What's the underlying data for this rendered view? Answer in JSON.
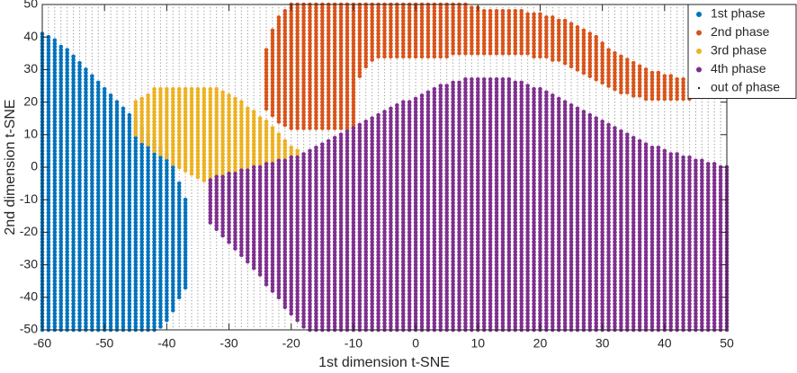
{
  "chart_data": {
    "type": "scatter",
    "xlabel": "1st dimension t-SNE",
    "ylabel": "2nd dimension t-SNE",
    "xlim": [
      -60,
      50
    ],
    "ylim": [
      -50,
      50
    ],
    "xticks": [
      -60,
      -50,
      -40,
      -30,
      -20,
      -10,
      0,
      10,
      20,
      30,
      40,
      50
    ],
    "yticks": [
      -50,
      -40,
      -30,
      -20,
      -10,
      0,
      10,
      20,
      30,
      40,
      50
    ],
    "legend": "upper right",
    "series": [
      {
        "name": "1st phase",
        "color": "#0072bd",
        "x": [
          -60,
          -59,
          -58,
          -57,
          -56,
          -55,
          -54,
          -53,
          -52,
          -51,
          -50,
          -49,
          -48,
          -47,
          -46,
          -45,
          -44,
          -43,
          -42,
          -41,
          -40,
          -39,
          -38,
          -37
        ],
        "ymax": [
          41,
          40,
          39,
          37,
          36,
          34,
          32,
          30,
          28,
          26,
          24,
          22,
          20,
          18,
          16,
          14,
          12,
          10,
          8,
          6,
          4,
          1,
          -5,
          -10
        ],
        "ymin": [
          -50,
          -50,
          -50,
          -50,
          -50,
          -50,
          -50,
          -50,
          -50,
          -50,
          -50,
          -50,
          -50,
          -50,
          -50,
          -50,
          -50,
          -50,
          -50,
          -49,
          -47,
          -44,
          -40,
          -37
        ]
      },
      {
        "name": "2nd phase",
        "color": "#d95319",
        "x": [
          -24,
          -23,
          -22,
          -21,
          -20,
          -19,
          -18,
          -17,
          -16,
          -15,
          -14,
          -13,
          -12,
          -11,
          -10,
          -9,
          -8,
          -7,
          -6,
          -5,
          -4,
          -3,
          -2,
          -1,
          0,
          1,
          2,
          3,
          4,
          5,
          6,
          7,
          8,
          9,
          10,
          11,
          12,
          13,
          14,
          15,
          16,
          17,
          18,
          19,
          20,
          21,
          22,
          23,
          24,
          25,
          26,
          27,
          28,
          29,
          30,
          31,
          32,
          33,
          34,
          35,
          36,
          37,
          38,
          39,
          40,
          41,
          42,
          43,
          44
        ],
        "ymax": [
          36,
          42,
          46,
          48,
          50,
          50,
          50,
          50,
          50,
          50,
          50,
          50,
          50,
          50,
          50,
          50,
          50,
          50,
          50,
          50,
          50,
          50,
          50,
          50,
          50,
          50,
          50,
          50,
          50,
          50,
          50,
          50,
          50,
          49,
          49,
          48,
          48,
          48,
          48,
          48,
          48,
          48,
          47,
          47,
          47,
          46,
          46,
          45,
          45,
          44,
          43,
          42,
          41,
          40,
          38,
          36,
          35,
          34,
          33,
          32,
          31,
          30,
          29,
          29,
          28,
          28,
          27,
          27,
          26
        ],
        "ymin": [
          18,
          16,
          14,
          13,
          12,
          12,
          12,
          12,
          12,
          12,
          12,
          12,
          12,
          12,
          12,
          28,
          31,
          33,
          34,
          34,
          34,
          34,
          34,
          34,
          34,
          34,
          34,
          34,
          34,
          34,
          35,
          35,
          35,
          35,
          35,
          35,
          35,
          35,
          35,
          35,
          35,
          35,
          35,
          34,
          34,
          34,
          33,
          33,
          32,
          31,
          30,
          29,
          28,
          27,
          26,
          25,
          24,
          23,
          23,
          22,
          22,
          21,
          21,
          21,
          21,
          21,
          21,
          21,
          21
        ]
      },
      {
        "name": "3rd phase",
        "color": "#edb120",
        "x": [
          -45,
          -44,
          -43,
          -42,
          -41,
          -40,
          -39,
          -38,
          -37,
          -36,
          -35,
          -34,
          -33,
          -32,
          -31,
          -30,
          -29,
          -28,
          -27,
          -26,
          -25,
          -24,
          -23,
          -22,
          -21,
          -20,
          -19
        ],
        "ymax": [
          20,
          21,
          22,
          24,
          24,
          24,
          24,
          24,
          24,
          24,
          24,
          24,
          24,
          24,
          23,
          22,
          21,
          20,
          18,
          17,
          15,
          14,
          12,
          10,
          8,
          6,
          5
        ],
        "ymin": [
          10,
          8,
          7,
          5,
          4,
          3,
          1,
          0,
          -1,
          -2,
          -3,
          -4,
          -5,
          -4,
          -3,
          -2,
          -1,
          -1,
          0,
          0,
          1,
          1,
          2,
          2,
          3,
          3,
          4
        ]
      },
      {
        "name": "4th phase",
        "color": "#7e2f8e",
        "x": [
          -33,
          -32,
          -31,
          -30,
          -29,
          -28,
          -27,
          -26,
          -25,
          -24,
          -23,
          -22,
          -21,
          -20,
          -19,
          -18,
          -17,
          -16,
          -15,
          -14,
          -13,
          -12,
          -11,
          -10,
          -9,
          -8,
          -7,
          -6,
          -5,
          -4,
          -3,
          -2,
          -1,
          0,
          1,
          2,
          3,
          4,
          5,
          6,
          7,
          8,
          9,
          10,
          11,
          12,
          13,
          14,
          15,
          16,
          17,
          18,
          19,
          20,
          21,
          22,
          23,
          24,
          25,
          26,
          27,
          28,
          29,
          30,
          31,
          32,
          33,
          34,
          35,
          36,
          37,
          38,
          39,
          40,
          41,
          42,
          43,
          44,
          45,
          46,
          47,
          48,
          49,
          50
        ],
        "ymax": [
          -4,
          -3,
          -3,
          -2,
          -2,
          -1,
          -1,
          0,
          0,
          1,
          1,
          2,
          2,
          3,
          3,
          4,
          5,
          6,
          7,
          8,
          9,
          10,
          11,
          12,
          13,
          14,
          15,
          16,
          17,
          18,
          19,
          20,
          20,
          21,
          22,
          23,
          24,
          25,
          25,
          26,
          26,
          27,
          27,
          27,
          27,
          27,
          27,
          27,
          27,
          26,
          26,
          25,
          24,
          24,
          23,
          22,
          21,
          20,
          19,
          18,
          17,
          16,
          15,
          14,
          13,
          12,
          11,
          10,
          9,
          8,
          7,
          6,
          6,
          5,
          4,
          4,
          3,
          3,
          2,
          2,
          1,
          1,
          0,
          0
        ],
        "ymin": [
          -17,
          -19,
          -21,
          -23,
          -25,
          -27,
          -29,
          -31,
          -33,
          -36,
          -38,
          -40,
          -43,
          -45,
          -47,
          -49,
          -50,
          -50,
          -50,
          -50,
          -50,
          -50,
          -50,
          -50,
          -50,
          -50,
          -50,
          -50,
          -50,
          -50,
          -50,
          -50,
          -50,
          -50,
          -50,
          -50,
          -50,
          -50,
          -50,
          -50,
          -50,
          -50,
          -50,
          -50,
          -50,
          -50,
          -50,
          -50,
          -50,
          -50,
          -50,
          -50,
          -50,
          -50,
          -50,
          -50,
          -50,
          -50,
          -50,
          -50,
          -50,
          -50,
          -50,
          -50,
          -50,
          -50,
          -50,
          -50,
          -50,
          -50,
          -50,
          -50,
          -50,
          -50,
          -50,
          -50,
          -50,
          -50,
          -50,
          -50,
          -50,
          -50,
          -50,
          -50
        ]
      },
      {
        "name": "out of phase",
        "color": "#9a9a9a",
        "x": [
          -60,
          -59,
          -58,
          -57,
          -56,
          -55,
          -54,
          -53,
          -52,
          -51,
          -50,
          -49,
          -48,
          -47,
          -46,
          -45,
          -44,
          -43,
          -42,
          -41,
          -40,
          -39,
          -38,
          -37,
          -36,
          -35,
          -34,
          -33,
          -32,
          -31,
          -30,
          -29,
          -28,
          -27,
          -26,
          -25,
          -24,
          -23,
          -22,
          -21,
          -20,
          -19,
          -18,
          -17,
          -16,
          -15,
          -14,
          -13,
          -12,
          -11,
          -10,
          -9,
          -8,
          -7,
          -6,
          -5,
          -4,
          -3,
          -2,
          -1,
          0,
          1,
          2,
          3,
          4,
          5,
          6,
          7,
          8,
          9,
          10,
          11,
          12,
          13,
          14,
          15,
          16,
          17,
          18,
          19,
          20,
          21,
          22,
          23,
          24,
          25,
          26,
          27,
          28,
          29,
          30,
          31,
          32,
          33,
          34,
          35,
          36,
          37,
          38,
          39,
          40,
          41,
          42,
          43,
          44,
          45,
          46,
          47,
          48,
          49,
          50
        ],
        "ymax": [
          50,
          50,
          50,
          50,
          50,
          50,
          50,
          50,
          50,
          50,
          50,
          50,
          50,
          50,
          50,
          50,
          50,
          50,
          50,
          50,
          50,
          50,
          50,
          50,
          50,
          50,
          50,
          50,
          50,
          50,
          50,
          50,
          50,
          50,
          50,
          50,
          50,
          50,
          50,
          50,
          50,
          50,
          50,
          50,
          50,
          50,
          50,
          50,
          50,
          50,
          50,
          50,
          50,
          50,
          50,
          50,
          50,
          50,
          50,
          50,
          50,
          50,
          50,
          50,
          50,
          50,
          50,
          50,
          50,
          50,
          50,
          50,
          50,
          50,
          50,
          50,
          50,
          50,
          50,
          50,
          50,
          50,
          50,
          50,
          50,
          50,
          50,
          50,
          50,
          50,
          50,
          50,
          50,
          50,
          50,
          50,
          50,
          50,
          50,
          50,
          50,
          50,
          50,
          50,
          50,
          50,
          50,
          50,
          50,
          50,
          50
        ],
        "ymin": [
          -50,
          -50,
          -50,
          -50,
          -50,
          -50,
          -50,
          -50,
          -50,
          -50,
          -50,
          -50,
          -50,
          -50,
          -50,
          -50,
          -50,
          -50,
          -50,
          -50,
          -50,
          -50,
          -50,
          -50,
          -50,
          -50,
          -50,
          -50,
          -50,
          -50,
          -50,
          -50,
          -50,
          -50,
          -50,
          -50,
          -50,
          -50,
          -50,
          -50,
          -50,
          -50,
          -50,
          -50,
          -50,
          -50,
          -50,
          -50,
          -50,
          -50,
          -50,
          -50,
          -50,
          -50,
          -50,
          -50,
          -50,
          -50,
          -50,
          -50,
          -50,
          -50,
          -50,
          -50,
          -50,
          -50,
          -50,
          -50,
          -50,
          -50,
          -50,
          -50,
          -50,
          -50,
          -50,
          -50,
          -50,
          -50,
          -50,
          -50,
          -50,
          -50,
          -50,
          -50,
          -50,
          -50,
          -50,
          -50,
          -50,
          -50,
          -50,
          -50,
          -50,
          -50,
          -50,
          -50,
          -50,
          -50,
          -50,
          -50,
          -50,
          -50,
          -50,
          -50,
          -50,
          -50,
          -50,
          -50,
          -50,
          -50,
          -50
        ]
      }
    ]
  }
}
